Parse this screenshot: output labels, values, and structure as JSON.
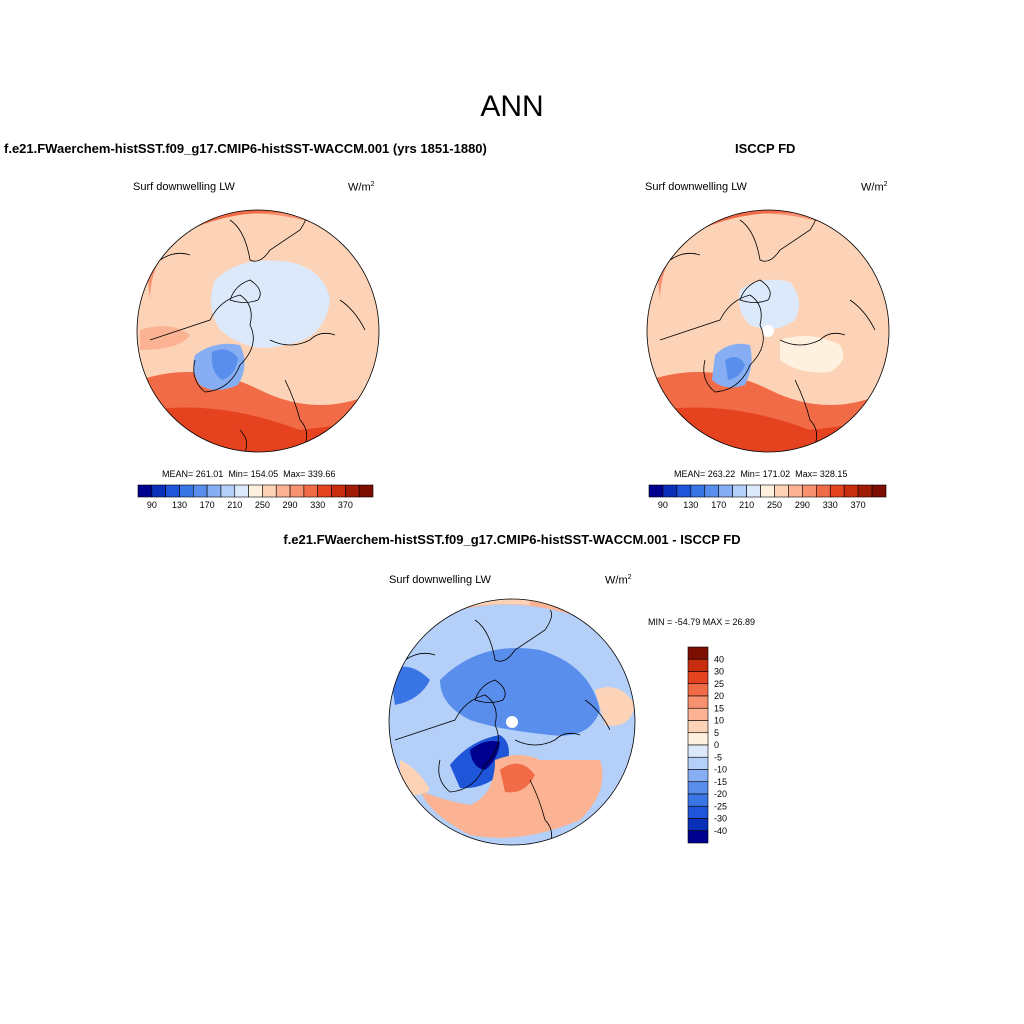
{
  "title": "ANN",
  "variable": "Surf downwelling LW",
  "units": "W/m",
  "units_sup": "2",
  "panels": [
    {
      "title": "f.e21.FWaerchem-histSST.f09_g17.CMIP6-histSST-WACCM.001 (yrs 1851-1880)",
      "mean_label": "MEAN= 261.01",
      "min_label": "Min= 154.05",
      "max_label": "Max= 339.66"
    },
    {
      "title": "ISCCP FD",
      "mean_label": "MEAN= 263.22",
      "min_label": "Min= 171.02",
      "max_label": "Max= 328.15"
    }
  ],
  "diff_panel": {
    "title": "f.e21.FWaerchem-histSST.f09_g17.CMIP6-histSST-WACCM.001 - ISCCP FD",
    "minmax_label": "MIN = -54.79 MAX =  26.89"
  },
  "abs_colorbar": {
    "colors": [
      "#00008f",
      "#0a2fb8",
      "#1f55d8",
      "#3a75e6",
      "#5a8eec",
      "#87aef2",
      "#b4cff8",
      "#dce9fb",
      "#fff1df",
      "#fdd3b7",
      "#fbb394",
      "#f7916f",
      "#f26b47",
      "#e5431f",
      "#c72d0e",
      "#a01c06",
      "#7d0f02"
    ],
    "tick_labels": [
      "90",
      "130",
      "170",
      "210",
      "250",
      "290",
      "330",
      "370"
    ]
  },
  "diff_colorbar": {
    "colors": [
      "#00008f",
      "#0a2fb8",
      "#1f55d8",
      "#3a75e6",
      "#5a8eec",
      "#87aef2",
      "#b4cff8",
      "#dce9fb",
      "#fff1df",
      "#fdd3b7",
      "#fbb394",
      "#f7916f",
      "#f26b47",
      "#e5431f",
      "#c72d0e",
      "#7d0f02"
    ],
    "tick_labels": [
      "40",
      "30",
      "25",
      "20",
      "15",
      "10",
      "5",
      "0",
      "-5",
      "-10",
      "-15",
      "-20",
      "-25",
      "-30",
      "-40"
    ]
  },
  "colors": {
    "land_outline": "#000000",
    "background": "#ffffff"
  }
}
